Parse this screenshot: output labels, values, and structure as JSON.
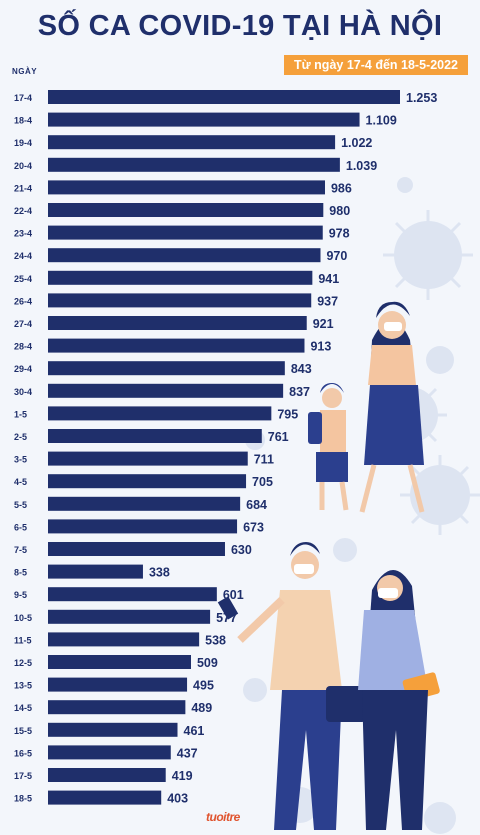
{
  "header": {
    "title": "SỐ CA COVID-19 TẠI HÀ NỘI",
    "date_range": "Từ ngày 17-4 đến 18-5-2022"
  },
  "footer": {
    "logo_text": "tuoitre"
  },
  "colors": {
    "bar": "#1f2f6b",
    "title": "#1f2f6b",
    "badge": "#f5a03b",
    "background": "#f3f6fb",
    "virus": "#dbe3f1"
  },
  "chart_data": {
    "type": "bar",
    "orientation": "horizontal",
    "title": "SỐ CA COVID-19 TẠI HÀ NỘI",
    "subtitle": "Từ ngày 17-4 đến 18-5-2022",
    "ylabel": "NGÀY",
    "xlabel": "",
    "categories": [
      "17-4",
      "18-4",
      "19-4",
      "20-4",
      "21-4",
      "22-4",
      "23-4",
      "24-4",
      "25-4",
      "26-4",
      "27-4",
      "28-4",
      "29-4",
      "30-4",
      "1-5",
      "2-5",
      "3-5",
      "4-5",
      "5-5",
      "6-5",
      "7-5",
      "8-5",
      "9-5",
      "10-5",
      "11-5",
      "12-5",
      "13-5",
      "14-5",
      "15-5",
      "16-5",
      "17-5",
      "18-5"
    ],
    "values": [
      1253,
      1109,
      1022,
      1039,
      986,
      980,
      978,
      970,
      941,
      937,
      921,
      913,
      843,
      837,
      795,
      761,
      711,
      705,
      684,
      673,
      630,
      338,
      601,
      577,
      538,
      509,
      495,
      489,
      461,
      437,
      419,
      403
    ],
    "value_labels": [
      "1.253",
      "1.109",
      "1.022",
      "1.039",
      "986",
      "980",
      "978",
      "970",
      "941",
      "937",
      "921",
      "913",
      "843",
      "837",
      "795",
      "761",
      "711",
      "705",
      "684",
      "673",
      "630",
      "338",
      "601",
      "577",
      "538",
      "509",
      "495",
      "489",
      "461",
      "437",
      "419",
      "403"
    ],
    "xlim": [
      0,
      1253
    ],
    "grid": false,
    "legend": "none"
  }
}
